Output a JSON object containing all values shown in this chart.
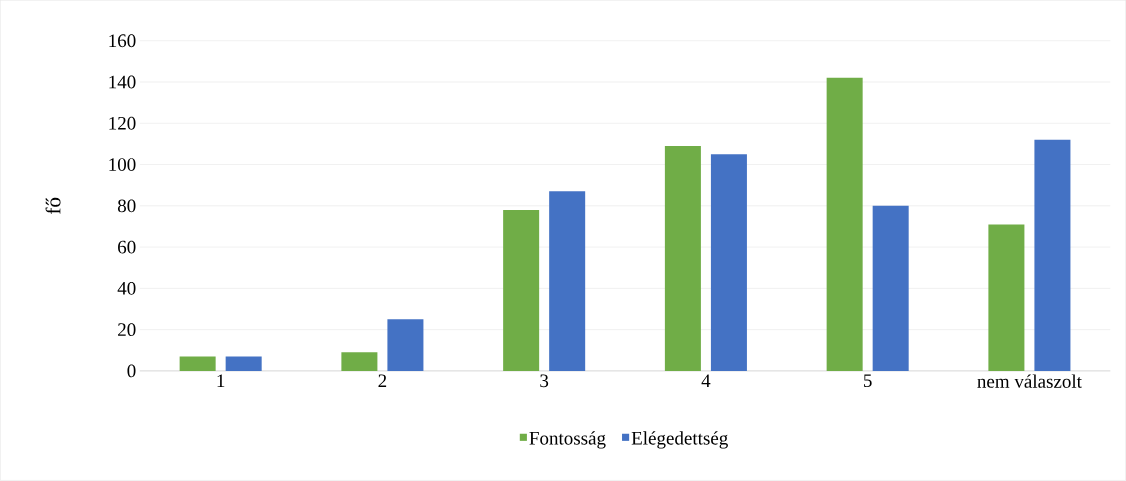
{
  "chart_data": {
    "type": "bar",
    "ylabel": "fő",
    "categories": [
      "1",
      "2",
      "3",
      "4",
      "5",
      "nem válaszolt"
    ],
    "series": [
      {
        "name": "Fontosság",
        "color": "#70ad47",
        "values": [
          7,
          9,
          78,
          109,
          142,
          71
        ]
      },
      {
        "name": "Elégedettség",
        "color": "#4472c4",
        "values": [
          7,
          25,
          87,
          105,
          80,
          112
        ]
      }
    ],
    "ylim": [
      0,
      160
    ],
    "yticks": [
      0,
      20,
      40,
      60,
      80,
      100,
      120,
      140,
      160
    ],
    "grid": "y",
    "legend": "bottom"
  }
}
